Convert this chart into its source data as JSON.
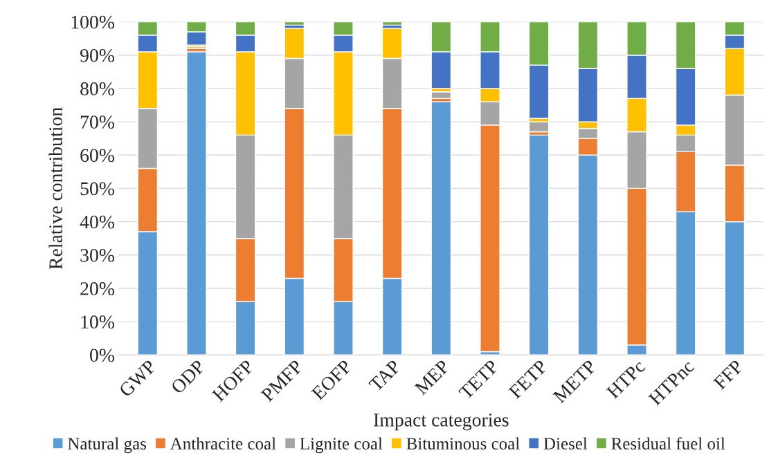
{
  "chart_data": {
    "type": "bar",
    "stacked": true,
    "xlabel": "Impact categories",
    "ylabel": "Relative contribution",
    "categories": [
      "GWP",
      "ODP",
      "HOFP",
      "PMFP",
      "EOFP",
      "TAP",
      "MEP",
      "TETP",
      "FETP",
      "METP",
      "HTPc",
      "HTPnc",
      "FFP"
    ],
    "series": [
      {
        "name": "Natural gas",
        "color": "#5b9bd5",
        "values": [
          37,
          91,
          16,
          23,
          16,
          23,
          76,
          1,
          66,
          60,
          3,
          43,
          40
        ]
      },
      {
        "name": "Anthracite coal",
        "color": "#ed7d31",
        "values": [
          19,
          1,
          19,
          51,
          19,
          51,
          1,
          68,
          1,
          5,
          47,
          18,
          17
        ]
      },
      {
        "name": "Lignite coal",
        "color": "#a5a5a5",
        "values": [
          18,
          0.5,
          31,
          15,
          31,
          15,
          2,
          7,
          3,
          3,
          17,
          5,
          21
        ]
      },
      {
        "name": "Bituminous coal",
        "color": "#ffc000",
        "values": [
          17,
          0.5,
          25,
          9,
          25,
          9,
          1,
          4,
          1,
          2,
          10,
          3,
          14
        ]
      },
      {
        "name": "Diesel",
        "color": "#4472c4",
        "values": [
          5,
          4,
          5,
          1,
          5,
          1,
          11,
          11,
          16,
          16,
          13,
          17,
          4
        ]
      },
      {
        "name": "Residual fuel oil",
        "color": "#70ad47",
        "values": [
          4,
          3,
          4,
          1,
          4,
          1,
          9,
          9,
          13,
          14,
          10,
          14,
          4
        ]
      }
    ],
    "ylim": [
      0,
      100
    ],
    "yticks": [
      {
        "value": 0,
        "label": "0%"
      },
      {
        "value": 10,
        "label": "10%"
      },
      {
        "value": 20,
        "label": "20%"
      },
      {
        "value": 30,
        "label": "30%"
      },
      {
        "value": 40,
        "label": "40%"
      },
      {
        "value": 50,
        "label": "50%"
      },
      {
        "value": 60,
        "label": "60%"
      },
      {
        "value": 70,
        "label": "70%"
      },
      {
        "value": 80,
        "label": "80%"
      },
      {
        "value": 90,
        "label": "90%"
      },
      {
        "value": 100,
        "label": "100%"
      }
    ],
    "grid": "y",
    "legend": "bottom"
  }
}
